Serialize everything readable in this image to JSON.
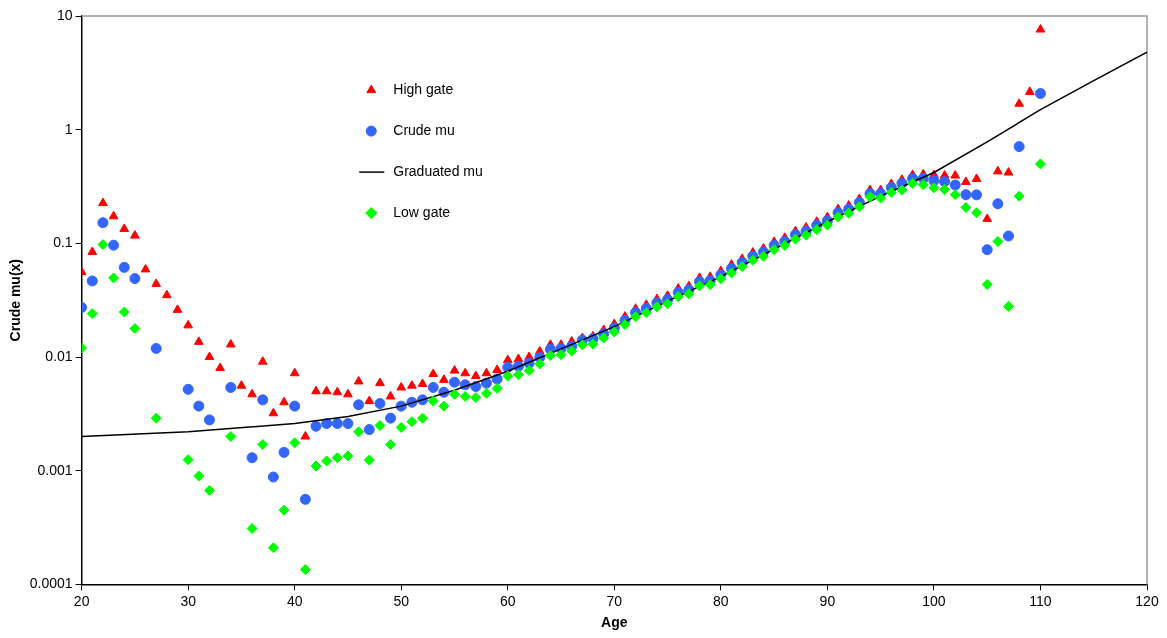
{
  "chart_data": {
    "type": "scatter",
    "xlabel": "Age",
    "ylabel": "Crude mu(x)",
    "log": "y",
    "grid": false,
    "legend": "top left",
    "xlim": [
      20,
      120
    ],
    "xticks": [
      20,
      30,
      40,
      50,
      60,
      70,
      80,
      90,
      100,
      110,
      120
    ],
    "ylim": [
      0.0001,
      10
    ],
    "yticks": [
      0.0001,
      0.001,
      0.01,
      0.1,
      1,
      10
    ],
    "x": [
      20,
      21,
      22,
      23,
      24,
      25,
      26,
      27,
      28,
      29,
      30,
      31,
      32,
      33,
      34,
      35,
      36,
      37,
      38,
      39,
      40,
      41,
      42,
      43,
      44,
      45,
      46,
      47,
      48,
      49,
      50,
      51,
      52,
      53,
      54,
      55,
      56,
      57,
      58,
      59,
      60,
      61,
      62,
      63,
      64,
      65,
      66,
      67,
      68,
      69,
      70,
      71,
      72,
      73,
      74,
      75,
      76,
      77,
      78,
      79,
      80,
      81,
      82,
      83,
      84,
      85,
      86,
      87,
      88,
      89,
      90,
      91,
      92,
      93,
      94,
      95,
      96,
      97,
      98,
      99,
      100,
      101,
      102,
      103,
      104,
      105,
      106,
      107,
      108,
      109,
      110
    ],
    "series": [
      {
        "name": "High gate",
        "marker": "triangle",
        "color": "#ff0000",
        "values": [
          0.056,
          0.084,
          0.226,
          0.173,
          0.134,
          0.117,
          0.059,
          0.044,
          0.035,
          0.026,
          0.019,
          0.0136,
          0.01,
          0.008,
          0.0129,
          0.0056,
          0.0047,
          0.0091,
          0.0032,
          0.004,
          0.0072,
          0.002,
          0.005,
          0.005,
          0.0049,
          0.0047,
          0.0061,
          0.0041,
          0.0059,
          0.0045,
          0.0054,
          0.0056,
          0.0058,
          0.0071,
          0.0063,
          0.0076,
          0.0072,
          0.0068,
          0.0072,
          0.0077,
          0.0094,
          0.0096,
          0.01,
          0.0112,
          0.0128,
          0.0128,
          0.0137,
          0.0147,
          0.0152,
          0.0173,
          0.0195,
          0.0227,
          0.0266,
          0.0288,
          0.0324,
          0.0346,
          0.04,
          0.042,
          0.0497,
          0.0508,
          0.057,
          0.065,
          0.073,
          0.083,
          0.09,
          0.103,
          0.112,
          0.128,
          0.138,
          0.155,
          0.17,
          0.2,
          0.215,
          0.246,
          0.294,
          0.294,
          0.333,
          0.362,
          0.4,
          0.405,
          0.4,
          0.395,
          0.395,
          0.347,
          0.369,
          0.164,
          0.43,
          0.42,
          1.69,
          2.15,
          7.6
        ]
      },
      {
        "name": "Crude mu",
        "marker": "circle",
        "color": "#3366ff",
        "values": [
          0.0273,
          0.0467,
          0.152,
          0.0964,
          0.0615,
          0.049,
          null,
          0.0119,
          null,
          null,
          0.0052,
          0.0037,
          0.0028,
          null,
          0.0054,
          null,
          0.0013,
          0.0042,
          0.00088,
          0.00145,
          0.0037,
          0.00056,
          0.00246,
          0.0026,
          0.0026,
          0.0026,
          0.0038,
          0.0023,
          0.0039,
          0.0029,
          0.0037,
          0.004,
          0.0042,
          0.0054,
          0.0049,
          0.006,
          0.0057,
          0.0055,
          0.0059,
          0.0064,
          0.0081,
          0.0083,
          0.0088,
          0.0099,
          0.0117,
          0.0119,
          0.0124,
          0.0141,
          0.0145,
          0.016,
          0.018,
          0.021,
          0.0246,
          0.0267,
          0.03,
          0.032,
          0.037,
          0.039,
          0.046,
          0.047,
          0.053,
          0.06,
          0.068,
          0.077,
          0.084,
          0.096,
          0.104,
          0.119,
          0.128,
          0.144,
          0.158,
          0.186,
          0.2,
          0.229,
          0.274,
          0.274,
          0.31,
          0.337,
          0.372,
          0.372,
          0.356,
          0.349,
          0.326,
          0.268,
          0.267,
          0.088,
          0.223,
          0.116,
          0.71,
          null,
          2.08
        ]
      },
      {
        "name": "Graduated mu",
        "type": "line",
        "marker": "none",
        "color": "#000000",
        "x": [
          20,
          30,
          40,
          45,
          50,
          55,
          60,
          65,
          70,
          75,
          80,
          85,
          90,
          95,
          100,
          105,
          110,
          115,
          120
        ],
        "values": [
          0.002,
          0.0022,
          0.0026,
          0.003,
          0.0037,
          0.0051,
          0.0075,
          0.0118,
          0.0185,
          0.031,
          0.051,
          0.089,
          0.155,
          0.26,
          0.42,
          0.78,
          1.5,
          2.7,
          4.8
        ]
      },
      {
        "name": "Low gate",
        "marker": "diamond",
        "color": "#00ff00",
        "values": [
          0.012,
          0.0241,
          0.0975,
          0.0497,
          0.0249,
          0.0178,
          null,
          0.0029,
          null,
          null,
          0.00125,
          0.0009,
          0.00067,
          null,
          0.002,
          null,
          0.00031,
          0.0017,
          0.00021,
          0.00045,
          0.00176,
          0.000135,
          0.0011,
          0.00122,
          0.0013,
          0.00135,
          0.0022,
          0.00124,
          0.0025,
          0.0017,
          0.0024,
          0.0027,
          0.0029,
          0.0041,
          0.0037,
          0.0047,
          0.0045,
          0.0044,
          0.0048,
          0.0053,
          0.0068,
          0.007,
          0.0076,
          0.0087,
          0.0103,
          0.0105,
          0.0113,
          0.0128,
          0.013,
          0.0147,
          0.0166,
          0.0193,
          0.0226,
          0.0246,
          0.0276,
          0.0294,
          0.034,
          0.036,
          0.0423,
          0.0433,
          0.0488,
          0.055,
          0.0625,
          0.071,
          0.077,
          0.088,
          0.096,
          0.109,
          0.118,
          0.132,
          0.145,
          0.171,
          0.184,
          0.21,
          0.257,
          0.25,
          0.28,
          0.294,
          0.337,
          0.328,
          0.308,
          0.298,
          0.268,
          0.207,
          0.186,
          0.0435,
          0.104,
          0.0279,
          0.26,
          null,
          0.5
        ]
      }
    ]
  }
}
